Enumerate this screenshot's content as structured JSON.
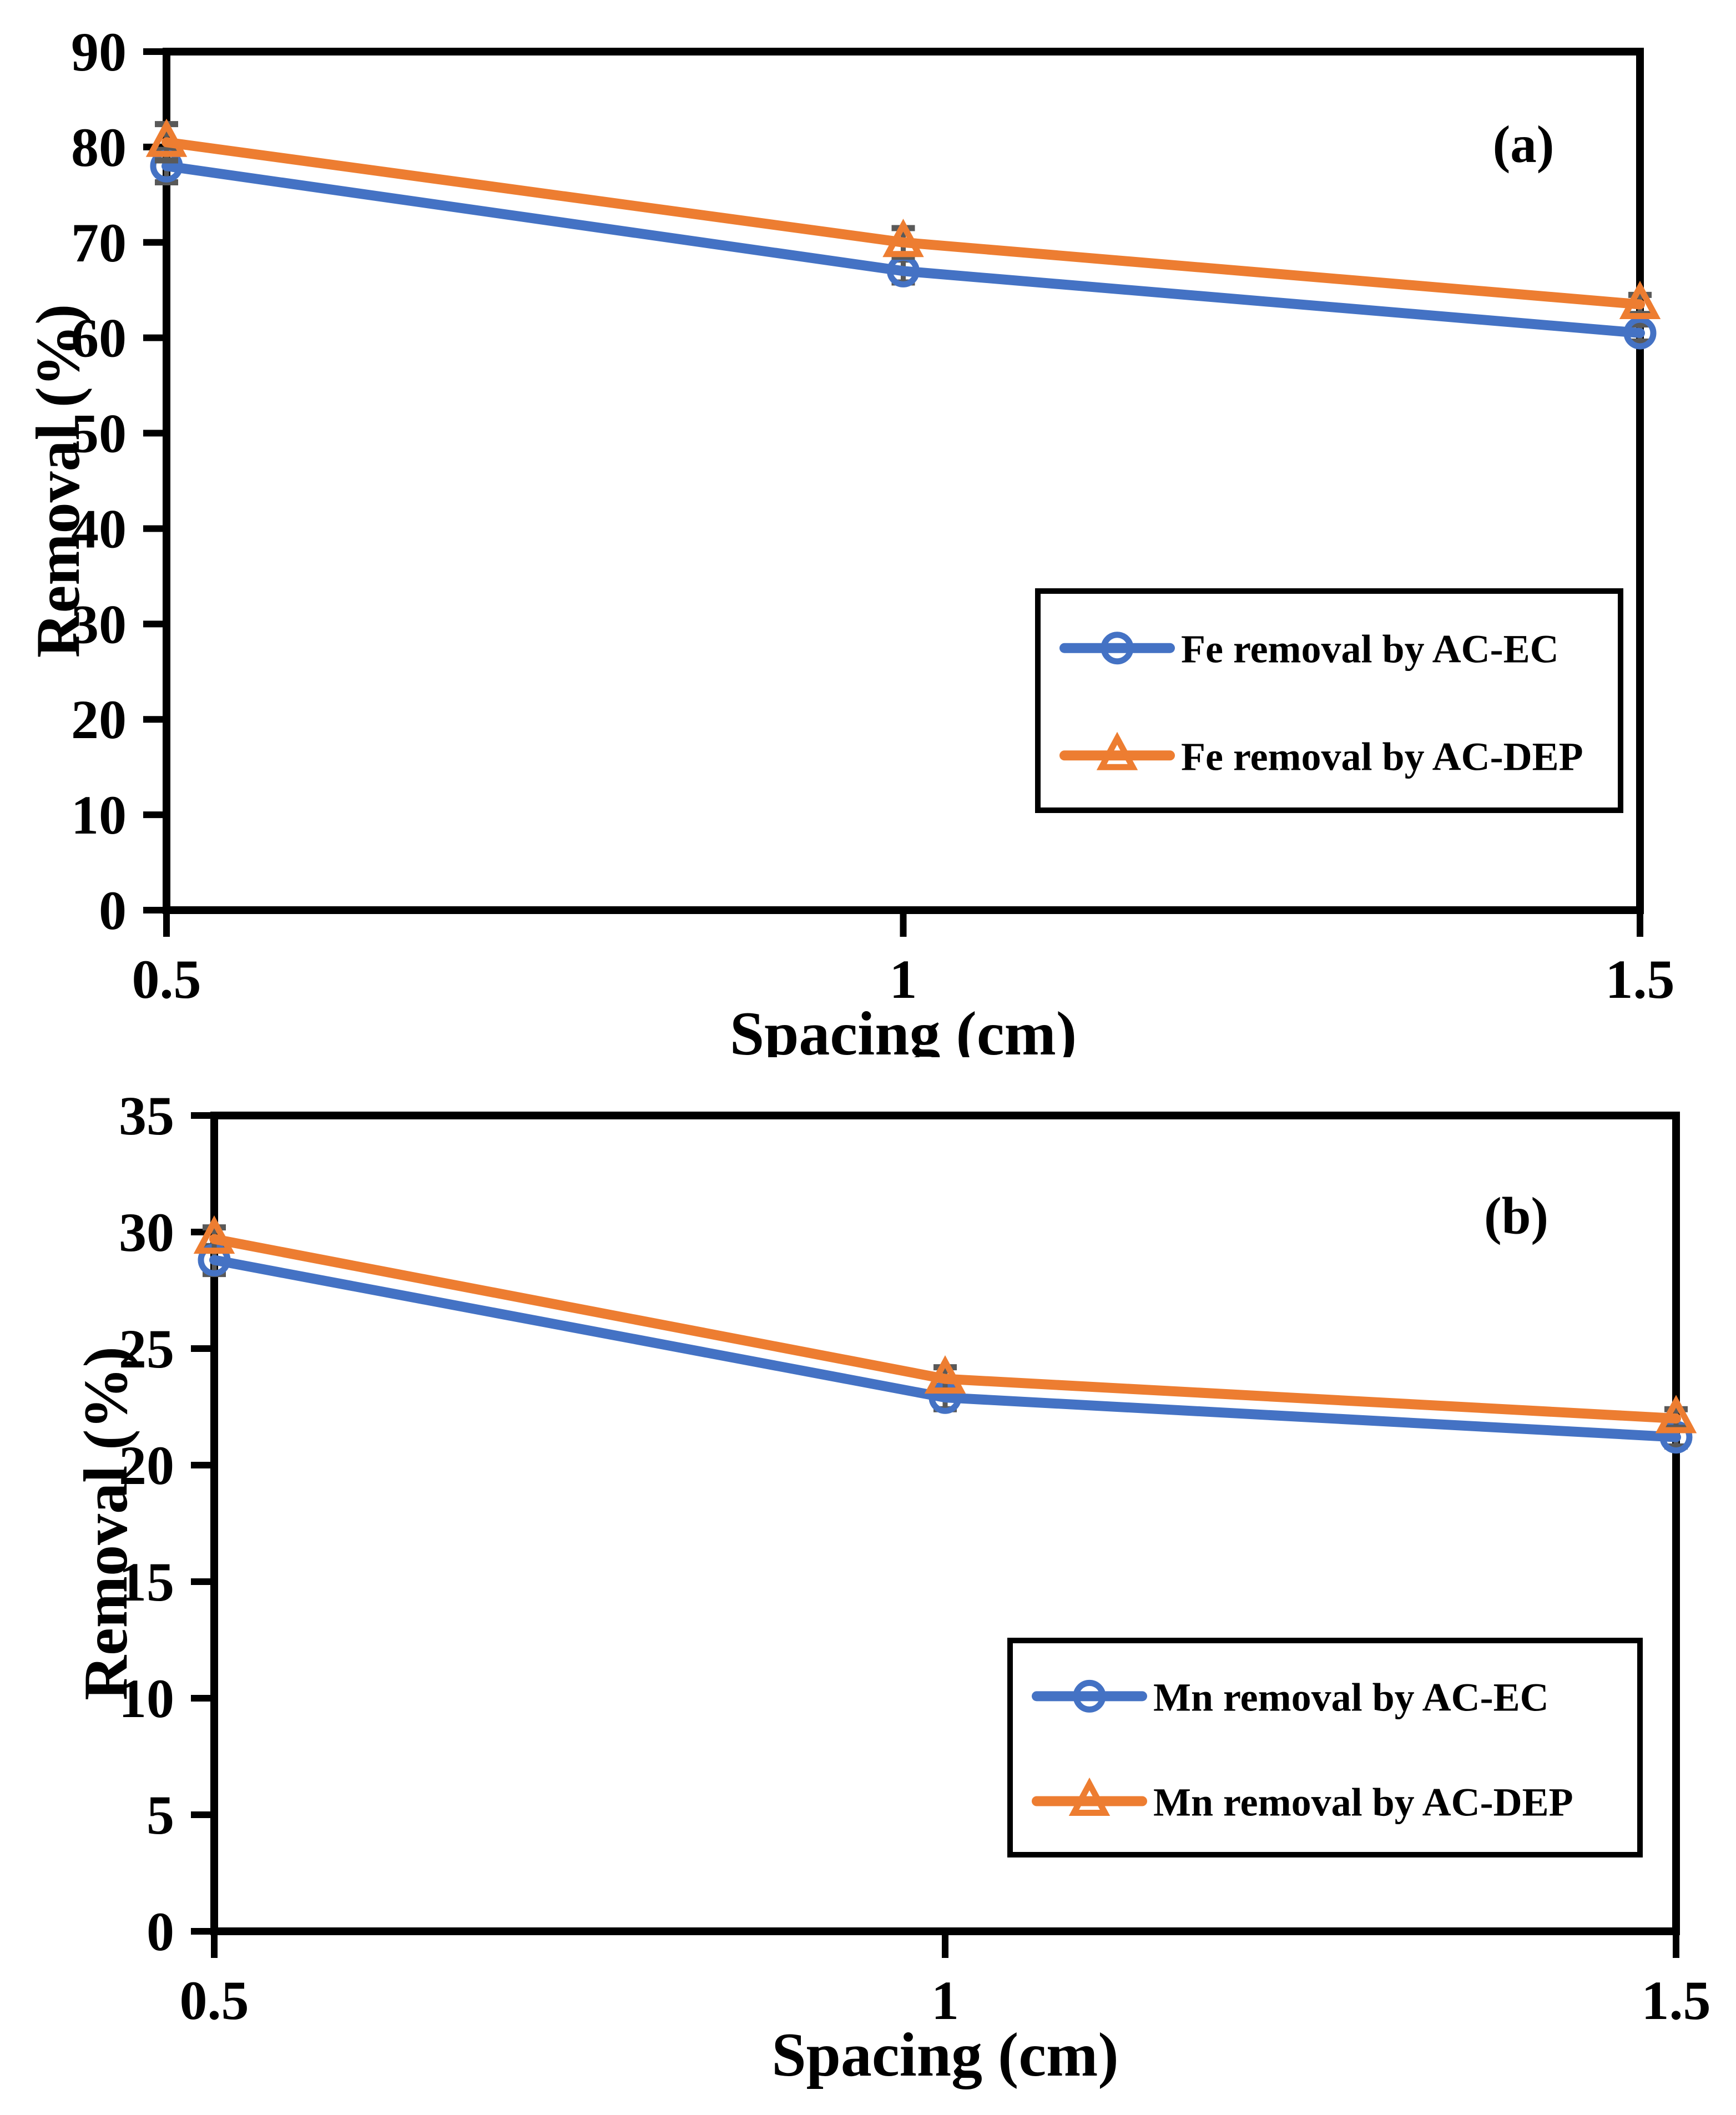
{
  "figure": {
    "background": "#ffffff",
    "error_bar_color": "#595959",
    "axis_color": "#000000"
  },
  "chart_data": [
    {
      "type": "line",
      "panel_label": "(a)",
      "xlabel": "Spacing (cm)",
      "ylabel": "Removal (%)",
      "x": [
        0.5,
        1,
        1.5
      ],
      "xtick_labels": [
        "0.5",
        "1",
        "1.5"
      ],
      "xlim": [
        0.5,
        1.5
      ],
      "ylim": [
        0,
        90
      ],
      "yticks": [
        0,
        10,
        20,
        30,
        40,
        50,
        60,
        70,
        80,
        90
      ],
      "grid": false,
      "legend_position": "lower-right",
      "series": [
        {
          "name": "Fe removal by AC-EC",
          "color": "#4472C4",
          "marker": "circle",
          "values": [
            78,
            67,
            60.5
          ],
          "errors": [
            1.7,
            1.2,
            0.9
          ]
        },
        {
          "name": "Fe removal by AC-DEP",
          "color": "#ED7D31",
          "marker": "triangle",
          "values": [
            80.5,
            70,
            63.5
          ],
          "errors": [
            1.9,
            1.5,
            1.0
          ]
        }
      ]
    },
    {
      "type": "line",
      "panel_label": "(b)",
      "xlabel": "Spacing (cm)",
      "ylabel": "Removal (%)",
      "x": [
        0.5,
        1,
        1.5
      ],
      "xtick_labels": [
        "0.5",
        "1",
        "1.5"
      ],
      "xlim": [
        0.5,
        1.5
      ],
      "ylim": [
        0,
        35
      ],
      "yticks": [
        0,
        5,
        10,
        15,
        20,
        25,
        30,
        35
      ],
      "grid": false,
      "legend_position": "lower-right",
      "series": [
        {
          "name": "Mn removal by AC-EC",
          "color": "#4472C4",
          "marker": "circle",
          "values": [
            28.8,
            22.9,
            21.2
          ],
          "errors": [
            0.6,
            0.5,
            0.4
          ]
        },
        {
          "name": "Mn removal by AC-DEP",
          "color": "#ED7D31",
          "marker": "triangle",
          "values": [
            29.7,
            23.7,
            22.0
          ],
          "errors": [
            0.5,
            0.5,
            0.4
          ]
        }
      ]
    }
  ]
}
